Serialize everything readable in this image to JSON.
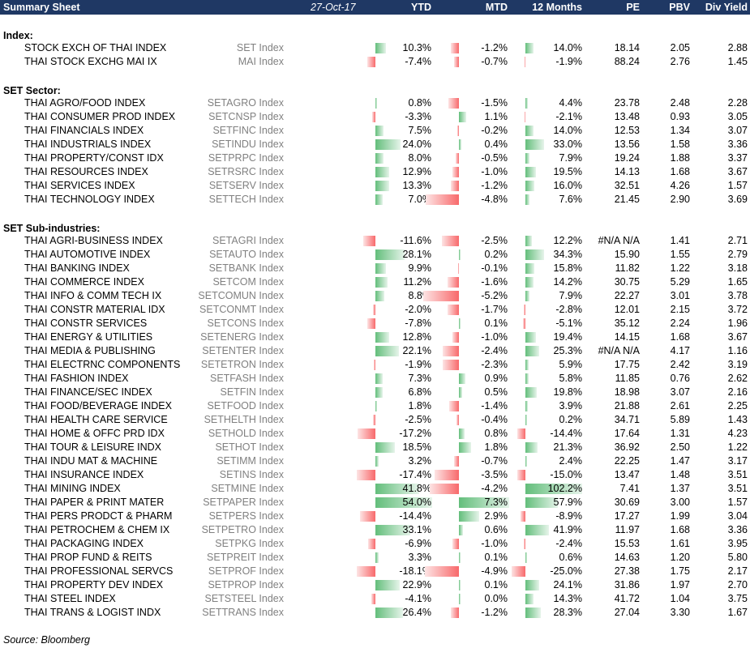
{
  "header": {
    "title": "Summary Sheet",
    "date": "27-Oct-17",
    "cols": [
      "YTD",
      "MTD",
      "12 Months",
      "PE",
      "PBV",
      "Div Yield"
    ]
  },
  "sections": [
    {
      "title": "Index:",
      "rows": [
        {
          "name": "STOCK EXCH OF THAI INDEX",
          "ticker": "SET Index",
          "ytd": "10.3%",
          "mtd": "-1.2%",
          "m12": "14.0%",
          "pe": "18.14",
          "pbv": "2.05",
          "dy": "2.88"
        },
        {
          "name": "THAI STOCK EXCHG MAI IX",
          "ticker": "MAI Index",
          "ytd": "-7.4%",
          "mtd": "-0.7%",
          "m12": "-1.9%",
          "pe": "88.24",
          "pbv": "2.76",
          "dy": "1.45"
        }
      ]
    },
    {
      "title": "SET Sector:",
      "rows": [
        {
          "name": "THAI AGRO/FOOD INDEX",
          "ticker": "SETAGRO Index",
          "ytd": "0.8%",
          "mtd": "-1.5%",
          "m12": "4.4%",
          "pe": "23.78",
          "pbv": "2.48",
          "dy": "2.28"
        },
        {
          "name": "THAI CONSUMER PROD INDEX",
          "ticker": "SETCNSP Index",
          "ytd": "-3.3%",
          "mtd": "1.1%",
          "m12": "-2.1%",
          "pe": "13.48",
          "pbv": "0.93",
          "dy": "3.05"
        },
        {
          "name": "THAI FINANCIALS INDEX",
          "ticker": "SETFINC Index",
          "ytd": "7.5%",
          "mtd": "-0.2%",
          "m12": "14.0%",
          "pe": "12.53",
          "pbv": "1.34",
          "dy": "3.07"
        },
        {
          "name": "THAI INDUSTRIALS INDEX",
          "ticker": "SETINDU Index",
          "ytd": "24.0%",
          "mtd": "0.4%",
          "m12": "33.0%",
          "pe": "13.56",
          "pbv": "1.58",
          "dy": "3.36"
        },
        {
          "name": "THAI PROPERTY/CONST IDX",
          "ticker": "SETPRPC Index",
          "ytd": "8.0%",
          "mtd": "-0.5%",
          "m12": "7.9%",
          "pe": "19.24",
          "pbv": "1.88",
          "dy": "3.37"
        },
        {
          "name": "THAI RESOURCES INDEX",
          "ticker": "SETRSRC Index",
          "ytd": "12.9%",
          "mtd": "-1.0%",
          "m12": "19.5%",
          "pe": "14.13",
          "pbv": "1.68",
          "dy": "3.67"
        },
        {
          "name": "THAI SERVICES INDEX",
          "ticker": "SETSERV Index",
          "ytd": "13.3%",
          "mtd": "-1.2%",
          "m12": "16.0%",
          "pe": "32.51",
          "pbv": "4.26",
          "dy": "1.57"
        },
        {
          "name": "THAI TECHNOLOGY INDEX",
          "ticker": "SETTECH Index",
          "ytd": "7.0%",
          "mtd": "-4.8%",
          "m12": "7.6%",
          "pe": "21.45",
          "pbv": "2.90",
          "dy": "3.69"
        }
      ]
    },
    {
      "title": "SET Sub-industries:",
      "rows": [
        {
          "name": "THAI AGRI-BUSINESS INDEX",
          "ticker": "SETAGRI Index",
          "ytd": "-11.6%",
          "mtd": "-2.5%",
          "m12": "12.2%",
          "pe": "#N/A N/A",
          "pbv": "1.41",
          "dy": "2.71"
        },
        {
          "name": "THAI AUTOMOTIVE INDEX",
          "ticker": "SETAUTO Index",
          "ytd": "28.1%",
          "mtd": "0.2%",
          "m12": "34.3%",
          "pe": "15.90",
          "pbv": "1.55",
          "dy": "2.79"
        },
        {
          "name": "THAI BANKING INDEX",
          "ticker": "SETBANK Index",
          "ytd": "9.9%",
          "mtd": "-0.1%",
          "m12": "15.8%",
          "pe": "11.82",
          "pbv": "1.22",
          "dy": "3.18"
        },
        {
          "name": "THAI COMMERCE INDEX",
          "ticker": "SETCOM Index",
          "ytd": "11.2%",
          "mtd": "-1.6%",
          "m12": "14.2%",
          "pe": "30.75",
          "pbv": "5.29",
          "dy": "1.65"
        },
        {
          "name": "THAI INFO & COMM TECH IX",
          "ticker": "SETCOMUN Index",
          "ytd": "8.8%",
          "mtd": "-5.2%",
          "m12": "7.9%",
          "pe": "22.27",
          "pbv": "3.01",
          "dy": "3.78"
        },
        {
          "name": "THAI CONSTR MATERIAL IDX",
          "ticker": "SETCONMT Index",
          "ytd": "-2.0%",
          "mtd": "-1.7%",
          "m12": "-2.8%",
          "pe": "12.01",
          "pbv": "2.15",
          "dy": "3.72"
        },
        {
          "name": "THAI CONSTR SERVICES",
          "ticker": "SETCONS Index",
          "ytd": "-7.8%",
          "mtd": "0.1%",
          "m12": "-5.1%",
          "pe": "35.12",
          "pbv": "2.24",
          "dy": "1.96"
        },
        {
          "name": "THAI ENERGY & UTILITIES",
          "ticker": "SETENERG Index",
          "ytd": "12.8%",
          "mtd": "-1.0%",
          "m12": "19.4%",
          "pe": "14.15",
          "pbv": "1.68",
          "dy": "3.67"
        },
        {
          "name": "THAI MEDIA & PUBLISHING",
          "ticker": "SETENTER Index",
          "ytd": "22.1%",
          "mtd": "-2.4%",
          "m12": "25.3%",
          "pe": "#N/A N/A",
          "pbv": "4.17",
          "dy": "1.16"
        },
        {
          "name": "THAI ELECTRNC COMPONENTS",
          "ticker": "SETETRON Index",
          "ytd": "-1.9%",
          "mtd": "-2.3%",
          "m12": "5.9%",
          "pe": "17.75",
          "pbv": "2.42",
          "dy": "3.19"
        },
        {
          "name": "THAI FASHION INDEX",
          "ticker": "SETFASH Index",
          "ytd": "7.3%",
          "mtd": "0.9%",
          "m12": "5.8%",
          "pe": "11.85",
          "pbv": "0.76",
          "dy": "2.62"
        },
        {
          "name": "THAI FINANCE/SEC INDEX",
          "ticker": "SETFIN Index",
          "ytd": "6.8%",
          "mtd": "0.5%",
          "m12": "19.8%",
          "pe": "18.98",
          "pbv": "3.07",
          "dy": "2.16"
        },
        {
          "name": "THAI FOOD/BEVERAGE INDEX",
          "ticker": "SETFOOD Index",
          "ytd": "1.8%",
          "mtd": "-1.4%",
          "m12": "3.9%",
          "pe": "21.88",
          "pbv": "2.61",
          "dy": "2.25"
        },
        {
          "name": "THAI HEALTH CARE SERVICE",
          "ticker": "SETHELTH Index",
          "ytd": "-2.5%",
          "mtd": "-0.4%",
          "m12": "0.2%",
          "pe": "34.71",
          "pbv": "5.89",
          "dy": "1.43"
        },
        {
          "name": "THAI HOME & OFFC PRD IDX",
          "ticker": "SETHOLD Index",
          "ytd": "-17.2%",
          "mtd": "0.8%",
          "m12": "-14.4%",
          "pe": "17.64",
          "pbv": "1.31",
          "dy": "4.23"
        },
        {
          "name": "THAI TOUR & LEISURE INDX",
          "ticker": "SETHOT Index",
          "ytd": "18.5%",
          "mtd": "1.8%",
          "m12": "21.3%",
          "pe": "36.92",
          "pbv": "2.50",
          "dy": "1.22"
        },
        {
          "name": "THAI INDU MAT & MACHINE",
          "ticker": "SETIMM Index",
          "ytd": "3.2%",
          "mtd": "-0.7%",
          "m12": "2.4%",
          "pe": "22.25",
          "pbv": "1.47",
          "dy": "3.17"
        },
        {
          "name": "THAI INSURANCE INDEX",
          "ticker": "SETINS Index",
          "ytd": "-17.4%",
          "mtd": "-3.5%",
          "m12": "-15.0%",
          "pe": "13.47",
          "pbv": "1.48",
          "dy": "3.51"
        },
        {
          "name": "THAI MINING INDEX",
          "ticker": "SETMINE Index",
          "ytd": "41.8%",
          "mtd": "-4.2%",
          "m12": "102.2%",
          "pe": "7.41",
          "pbv": "1.37",
          "dy": "3.51"
        },
        {
          "name": "THAI PAPER & PRINT MATER",
          "ticker": "SETPAPER Index",
          "ytd": "54.0%",
          "mtd": "7.3%",
          "m12": "57.9%",
          "pe": "30.69",
          "pbv": "3.00",
          "dy": "1.57"
        },
        {
          "name": "THAI PERS PRODCT & PHARM",
          "ticker": "SETPERS Index",
          "ytd": "-14.4%",
          "mtd": "2.9%",
          "m12": "-8.9%",
          "pe": "17.27",
          "pbv": "1.99",
          "dy": "3.04"
        },
        {
          "name": "THAI PETROCHEM & CHEM IX",
          "ticker": "SETPETRO Index",
          "ytd": "33.1%",
          "mtd": "0.6%",
          "m12": "41.9%",
          "pe": "11.97",
          "pbv": "1.68",
          "dy": "3.36"
        },
        {
          "name": "THAI PACKAGING INDEX",
          "ticker": "SETPKG Index",
          "ytd": "-6.9%",
          "mtd": "-1.0%",
          "m12": "-2.4%",
          "pe": "15.53",
          "pbv": "1.61",
          "dy": "3.95"
        },
        {
          "name": "THAI PROP FUND & REITS",
          "ticker": "SETPREIT Index",
          "ytd": "3.3%",
          "mtd": "0.1%",
          "m12": "0.6%",
          "pe": "14.63",
          "pbv": "1.20",
          "dy": "5.80"
        },
        {
          "name": "THAI PROFESSIONAL SERVCS",
          "ticker": "SETPROF Index",
          "ytd": "-18.1%",
          "mtd": "-4.9%",
          "m12": "-25.0%",
          "pe": "27.38",
          "pbv": "1.75",
          "dy": "2.17"
        },
        {
          "name": "THAI PROPERTY DEV INDEX",
          "ticker": "SETPROP Index",
          "ytd": "22.9%",
          "mtd": "0.1%",
          "m12": "24.1%",
          "pe": "31.86",
          "pbv": "1.97",
          "dy": "2.70"
        },
        {
          "name": "THAI STEEL INDEX",
          "ticker": "SETSTEEL Index",
          "ytd": "-4.1%",
          "mtd": "0.0%",
          "m12": "14.3%",
          "pe": "41.72",
          "pbv": "1.04",
          "dy": "3.75"
        },
        {
          "name": "THAI TRANS & LOGIST INDX",
          "ticker": "SETTRANS Index",
          "ytd": "26.4%",
          "mtd": "-1.2%",
          "m12": "28.3%",
          "pe": "27.04",
          "pbv": "3.30",
          "dy": "1.67"
        }
      ]
    }
  ],
  "source": "Source: Bloomberg",
  "colors": {
    "header_bg": "#1f3864",
    "bar_positive": "#63be7b",
    "bar_negative": "#f8696b"
  }
}
